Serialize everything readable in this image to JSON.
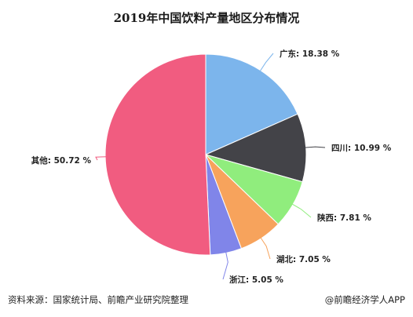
{
  "chart_data": {
    "type": "pie",
    "title": "2019年中国饮料产量地区分布情况",
    "slices": [
      {
        "label": "广东",
        "value": 18.38,
        "display": "广东: 18.38 %",
        "color": "#7cb5ec"
      },
      {
        "label": "四川",
        "value": 10.99,
        "display": "四川: 10.99 %",
        "color": "#434348"
      },
      {
        "label": "陕西",
        "value": 7.81,
        "display": "陕西: 7.81 %",
        "color": "#90ed7d"
      },
      {
        "label": "湖北",
        "value": 7.05,
        "display": "湖北: 7.05 %",
        "color": "#f7a35c"
      },
      {
        "label": "浙江",
        "value": 5.05,
        "display": "浙江: 5.05 %",
        "color": "#8085e9"
      },
      {
        "label": "其他",
        "value": 50.72,
        "display": "其他: 50.72 %",
        "color": "#f15c80"
      }
    ]
  },
  "footer": {
    "source": "资料来源：国家统计局、前瞻产业研究院整理",
    "brand": "@前瞻经济学人APP"
  }
}
